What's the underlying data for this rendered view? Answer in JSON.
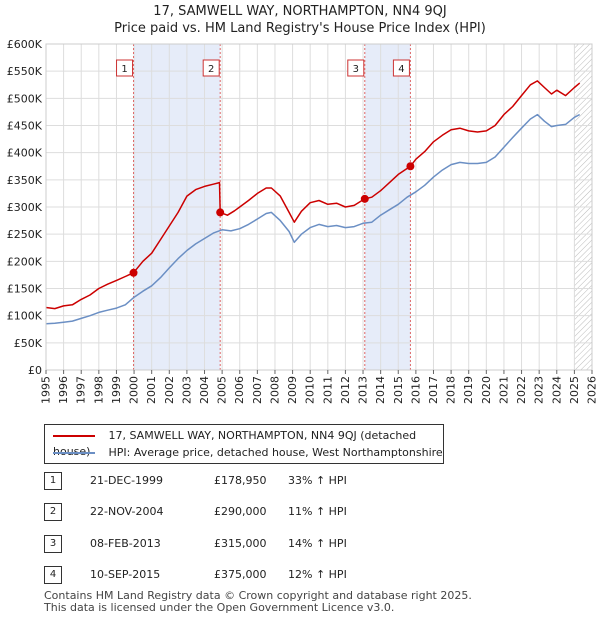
{
  "chart_data": {
    "type": "line",
    "title": "17, SAMWELL WAY, NORTHAMPTON, NN4 9QJ",
    "subtitle": "Price paid vs. HM Land Registry's House Price Index (HPI)",
    "xlim": [
      1995,
      2026
    ],
    "ylim": [
      0,
      600000
    ],
    "x_ticks": [
      "1995",
      "1996",
      "1997",
      "1998",
      "1999",
      "2000",
      "2001",
      "2002",
      "2003",
      "2004",
      "2005",
      "2006",
      "2007",
      "2008",
      "2009",
      "2010",
      "2011",
      "2012",
      "2013",
      "2014",
      "2015",
      "2016",
      "2017",
      "2018",
      "2019",
      "2020",
      "2021",
      "2022",
      "2023",
      "2024",
      "2025",
      "2026"
    ],
    "y_ticks": [
      {
        "value": 0,
        "label": "£0"
      },
      {
        "value": 50000,
        "label": "£50K"
      },
      {
        "value": 100000,
        "label": "£100K"
      },
      {
        "value": 150000,
        "label": "£150K"
      },
      {
        "value": 200000,
        "label": "£200K"
      },
      {
        "value": 250000,
        "label": "£250K"
      },
      {
        "value": 300000,
        "label": "£300K"
      },
      {
        "value": 350000,
        "label": "£350K"
      },
      {
        "value": 400000,
        "label": "£400K"
      },
      {
        "value": 450000,
        "label": "£450K"
      },
      {
        "value": 500000,
        "label": "£500K"
      },
      {
        "value": 550000,
        "label": "£550K"
      },
      {
        "value": 600000,
        "label": "£600K"
      }
    ],
    "grid": true,
    "shaded_periods": [
      [
        1999.97,
        2004.89
      ],
      [
        2013.1,
        2015.69
      ]
    ],
    "forecast_from": 2025.0,
    "series": [
      {
        "name": "17, SAMWELL WAY, NORTHAMPTON, NN4 9QJ (detached house)",
        "color": "#cc0000",
        "x": [
          1995.0,
          1995.5,
          1996.0,
          1996.5,
          1997.0,
          1997.5,
          1998.0,
          1998.5,
          1999.0,
          1999.5,
          1999.97,
          2000.5,
          2001.0,
          2001.5,
          2002.0,
          2002.5,
          2003.0,
          2003.5,
          2004.0,
          2004.5,
          2004.85,
          2004.89,
          2005.3,
          2005.7,
          2006.0,
          2006.5,
          2007.0,
          2007.5,
          2007.8,
          2008.3,
          2008.8,
          2009.1,
          2009.5,
          2010.0,
          2010.5,
          2011.0,
          2011.5,
          2012.0,
          2012.5,
          2013.1,
          2013.5,
          2014.0,
          2014.5,
          2015.0,
          2015.69,
          2016.0,
          2016.5,
          2017.0,
          2017.5,
          2018.0,
          2018.5,
          2019.0,
          2019.5,
          2020.0,
          2020.5,
          2021.0,
          2021.5,
          2022.0,
          2022.5,
          2022.9,
          2023.3,
          2023.7,
          2024.0,
          2024.5,
          2025.0,
          2025.3
        ],
        "values": [
          115000,
          113000,
          118000,
          120000,
          130000,
          138000,
          150000,
          158000,
          165000,
          172000,
          178950,
          200000,
          215000,
          240000,
          265000,
          290000,
          320000,
          332000,
          338000,
          342000,
          345000,
          290000,
          285000,
          293000,
          300000,
          312000,
          325000,
          335000,
          335000,
          320000,
          290000,
          272000,
          292000,
          308000,
          312000,
          305000,
          307000,
          300000,
          303000,
          315000,
          318000,
          330000,
          345000,
          360000,
          375000,
          388000,
          402000,
          420000,
          432000,
          442000,
          445000,
          440000,
          438000,
          440000,
          450000,
          470000,
          485000,
          505000,
          525000,
          532000,
          520000,
          508000,
          515000,
          505000,
          520000,
          528000
        ]
      },
      {
        "name": "HPI: Average price, detached house, West Northamptonshire",
        "color": "#6b8fc4",
        "x": [
          1995.0,
          1995.5,
          1996.0,
          1996.5,
          1997.0,
          1997.5,
          1998.0,
          1998.5,
          1999.0,
          1999.5,
          2000.0,
          2000.5,
          2001.0,
          2001.5,
          2002.0,
          2002.5,
          2003.0,
          2003.5,
          2004.0,
          2004.5,
          2005.0,
          2005.5,
          2006.0,
          2006.5,
          2007.0,
          2007.5,
          2007.8,
          2008.3,
          2008.8,
          2009.1,
          2009.5,
          2010.0,
          2010.5,
          2011.0,
          2011.5,
          2012.0,
          2012.5,
          2013.0,
          2013.5,
          2014.0,
          2014.5,
          2015.0,
          2015.5,
          2016.0,
          2016.5,
          2017.0,
          2017.5,
          2018.0,
          2018.5,
          2019.0,
          2019.5,
          2020.0,
          2020.5,
          2021.0,
          2021.5,
          2022.0,
          2022.5,
          2022.9,
          2023.3,
          2023.7,
          2024.0,
          2024.5,
          2025.0,
          2025.3
        ],
        "values": [
          85000,
          86000,
          88000,
          90000,
          95000,
          100000,
          106000,
          110000,
          114000,
          120000,
          134000,
          145000,
          155000,
          170000,
          188000,
          205000,
          220000,
          232000,
          242000,
          252000,
          258000,
          256000,
          260000,
          268000,
          278000,
          288000,
          290000,
          275000,
          255000,
          235000,
          250000,
          262000,
          268000,
          264000,
          266000,
          262000,
          264000,
          270000,
          272000,
          285000,
          295000,
          305000,
          318000,
          328000,
          340000,
          355000,
          368000,
          378000,
          382000,
          380000,
          380000,
          382000,
          392000,
          410000,
          428000,
          445000,
          462000,
          470000,
          458000,
          448000,
          450000,
          452000,
          465000,
          470000
        ]
      }
    ],
    "sales": [
      {
        "num": "1",
        "x": 1999.97,
        "value": 178950
      },
      {
        "num": "2",
        "x": 2004.89,
        "value": 290000
      },
      {
        "num": "3",
        "x": 2013.1,
        "value": 315000
      },
      {
        "num": "4",
        "x": 2015.69,
        "value": 375000
      }
    ]
  },
  "legend": {
    "property_label": "17, SAMWELL WAY, NORTHAMPTON, NN4 9QJ (detached house)",
    "hpi_label": "HPI: Average price, detached house, West Northamptonshire",
    "property_color": "#cc0000",
    "hpi_color": "#6b8fc4"
  },
  "sales_table": [
    {
      "num": "1",
      "date": "21-DEC-1999",
      "price": "£178,950",
      "hpi": "33% ↑ HPI"
    },
    {
      "num": "2",
      "date": "22-NOV-2004",
      "price": "£290,000",
      "hpi": "11% ↑ HPI"
    },
    {
      "num": "3",
      "date": "08-FEB-2013",
      "price": "£315,000",
      "hpi": "14% ↑ HPI"
    },
    {
      "num": "4",
      "date": "10-SEP-2015",
      "price": "£375,000",
      "hpi": "12% ↑ HPI"
    }
  ],
  "footer": {
    "line1": "Contains HM Land Registry data © Crown copyright and database right 2025.",
    "line2": "This data is licensed under the Open Government Licence v3.0."
  }
}
